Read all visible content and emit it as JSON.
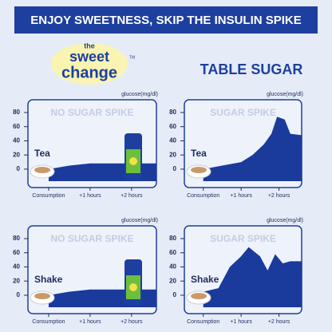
{
  "header": {
    "title": "ENJOY SWEETNESS, SKIP THE INSULIN SPIKE"
  },
  "logo": {
    "line1": "the",
    "line2": "sweet",
    "line3": "change",
    "mark": "TM"
  },
  "column_heading": "TABLE SUGAR",
  "chart_data": [
    {
      "type": "area",
      "title": "NO SUGAR SPIKE",
      "ylabel": "glucose(mg/dl)",
      "annotation": "Tea",
      "color": "#1a3a9c",
      "x": [
        0,
        0.5,
        1,
        1.5,
        2,
        2.6
      ],
      "values": [
        0,
        5,
        8,
        8,
        8,
        8
      ],
      "xlim": [
        -0.5,
        2.6
      ],
      "ylim": [
        -26,
        98
      ],
      "yticks": [
        0,
        20,
        40,
        60,
        80
      ],
      "xticks": [
        {
          "value": 0,
          "label": "Consumption"
        },
        {
          "value": 1,
          "label": "+1 hours"
        },
        {
          "value": 2,
          "label": "+2 hours"
        }
      ]
    },
    {
      "type": "area",
      "title": "SUGAR SPIKE",
      "ylabel": "glucose(mg/dl)",
      "annotation": "Tea",
      "color": "#1a3a9c",
      "x": [
        0,
        0.5,
        1,
        1.3,
        1.6,
        1.8,
        1.95,
        2.15,
        2.3,
        2.6
      ],
      "values": [
        0,
        5,
        10,
        20,
        35,
        50,
        74,
        70,
        50,
        48
      ],
      "xlim": [
        -0.5,
        2.6
      ],
      "ylim": [
        -26,
        98
      ],
      "yticks": [
        0,
        20,
        40,
        60,
        80
      ],
      "xticks": [
        {
          "value": 0,
          "label": "Consumption"
        },
        {
          "value": 1,
          "label": "+1 hours"
        },
        {
          "value": 2,
          "label": "+2 hours"
        }
      ]
    },
    {
      "type": "area",
      "title": "NO SUGAR SPIKE",
      "ylabel": "glucose(mg/dl)",
      "annotation": "Shake",
      "color": "#1a3a9c",
      "x": [
        0,
        0.5,
        1,
        1.5,
        2,
        2.6
      ],
      "values": [
        0,
        5,
        8,
        8,
        8,
        8
      ],
      "xlim": [
        -0.5,
        2.6
      ],
      "ylim": [
        -26,
        98
      ],
      "yticks": [
        0,
        20,
        40,
        60,
        80
      ],
      "xticks": [
        {
          "value": 0,
          "label": "Consumption"
        },
        {
          "value": 1,
          "label": "+1 hours"
        },
        {
          "value": 2,
          "label": "+2 hours"
        }
      ]
    },
    {
      "type": "area",
      "title": "SUGAR SPIKE",
      "ylabel": "glucose(mg/dl)",
      "annotation": "Shake",
      "color": "#1a3a9c",
      "x": [
        0,
        0.4,
        0.7,
        1.0,
        1.2,
        1.5,
        1.7,
        1.9,
        2.1,
        2.3,
        2.6
      ],
      "values": [
        5,
        10,
        40,
        55,
        68,
        55,
        35,
        58,
        45,
        48,
        48
      ],
      "xlim": [
        -0.5,
        2.6
      ],
      "ylim": [
        -26,
        98
      ],
      "yticks": [
        0,
        20,
        40,
        60,
        80
      ],
      "xticks": [
        {
          "value": 0,
          "label": "Consumption"
        },
        {
          "value": 1,
          "label": "+1 hours"
        },
        {
          "value": 2,
          "label": "+2 hours"
        }
      ]
    }
  ]
}
